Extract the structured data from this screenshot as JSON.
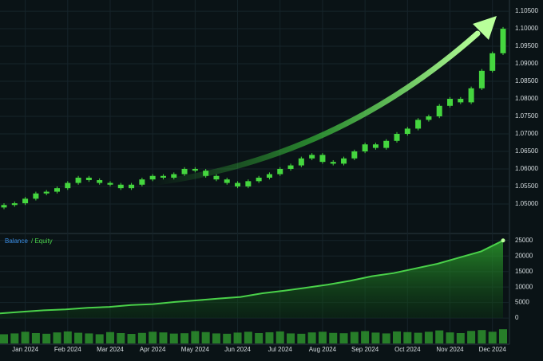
{
  "chart_data": [
    {
      "type": "candlestick",
      "categories": [
        null,
        null,
        "Jan 2024",
        null,
        null,
        null,
        "Feb 2024",
        null,
        null,
        null,
        "Mar 2024",
        null,
        null,
        null,
        "Apr 2024",
        null,
        null,
        null,
        "May 2024",
        null,
        null,
        null,
        "Jun 2024",
        null,
        null,
        null,
        "Jul 2024",
        null,
        null,
        null,
        "Aug 2024",
        null,
        null,
        null,
        "Sep 2024",
        null,
        null,
        null,
        "Oct 2024",
        null,
        null,
        null,
        "Nov 2024",
        null,
        null,
        null,
        "Dec 2024",
        null
      ],
      "open": [
        1.049,
        1.0497,
        1.0502,
        1.0515,
        1.053,
        1.0535,
        1.0545,
        1.056,
        1.0575,
        1.0568,
        1.056,
        1.0555,
        1.0545,
        1.0555,
        1.057,
        1.058,
        1.0575,
        1.0585,
        1.06,
        1.0595,
        1.058,
        1.057,
        1.056,
        1.055,
        1.0565,
        1.0575,
        1.0585,
        1.06,
        1.061,
        1.063,
        1.064,
        1.062,
        1.0615,
        1.063,
        1.065,
        1.067,
        1.066,
        1.068,
        1.07,
        1.0715,
        1.074,
        1.075,
        1.078,
        1.08,
        1.079,
        1.083,
        1.088,
        1.093
      ],
      "high": [
        1.0502,
        1.0507,
        1.052,
        1.0535,
        1.054,
        1.055,
        1.0565,
        1.058,
        1.058,
        1.0573,
        1.0565,
        1.056,
        1.056,
        1.0575,
        1.0585,
        1.0585,
        1.059,
        1.0605,
        1.0605,
        1.06,
        1.0585,
        1.0575,
        1.0565,
        1.057,
        1.058,
        1.059,
        1.0605,
        1.0615,
        1.0635,
        1.0645,
        1.0645,
        1.0625,
        1.0635,
        1.0655,
        1.0675,
        1.0675,
        1.0685,
        1.0705,
        1.072,
        1.0745,
        1.0755,
        1.0785,
        1.0805,
        1.0805,
        1.0835,
        1.0885,
        1.0935,
        1.1005
      ],
      "low": [
        1.0485,
        1.0492,
        1.0497,
        1.051,
        1.0525,
        1.053,
        1.054,
        1.0555,
        1.0563,
        1.0555,
        1.055,
        1.054,
        1.054,
        1.055,
        1.0565,
        1.057,
        1.057,
        1.058,
        1.059,
        1.0575,
        1.0565,
        1.0555,
        1.0545,
        1.0545,
        1.056,
        1.057,
        1.058,
        1.0595,
        1.0605,
        1.0625,
        1.0615,
        1.061,
        1.061,
        1.0625,
        1.0645,
        1.0655,
        1.0655,
        1.0675,
        1.0695,
        1.071,
        1.0735,
        1.0745,
        1.0775,
        1.0785,
        1.0785,
        1.0825,
        1.0875,
        1.0925
      ],
      "close": [
        1.0497,
        1.0502,
        1.0515,
        1.053,
        1.0535,
        1.0545,
        1.056,
        1.0575,
        1.0568,
        1.056,
        1.0555,
        1.0545,
        1.0555,
        1.057,
        1.058,
        1.0575,
        1.0585,
        1.06,
        1.0595,
        1.058,
        1.057,
        1.056,
        1.055,
        1.0565,
        1.0575,
        1.0585,
        1.06,
        1.061,
        1.063,
        1.064,
        1.062,
        1.0615,
        1.063,
        1.065,
        1.067,
        1.066,
        1.068,
        1.07,
        1.0715,
        1.074,
        1.075,
        1.078,
        1.08,
        1.079,
        1.083,
        1.088,
        1.093,
        1.1
      ],
      "color": "#45d63f",
      "ylim": [
        1.0418,
        1.1082
      ],
      "yticks": [
        {
          "value": 1.05,
          "label": "1.05000"
        },
        {
          "value": 1.055,
          "label": "1.05500"
        },
        {
          "value": 1.06,
          "label": "1.06000"
        },
        {
          "value": 1.065,
          "label": "1.06500"
        },
        {
          "value": 1.07,
          "label": "1.07000"
        },
        {
          "value": 1.075,
          "label": "1.07500"
        },
        {
          "value": 1.08,
          "label": "1.08000"
        },
        {
          "value": 1.085,
          "label": "1.08500"
        },
        {
          "value": 1.09,
          "label": "1.09000"
        },
        {
          "value": 1.095,
          "label": "1.09500"
        },
        {
          "value": 1.1,
          "label": "1.10000"
        },
        {
          "value": 1.105,
          "label": "1.10500"
        }
      ],
      "grid": true
    },
    {
      "type": "area",
      "legend": [
        "Balance",
        "/ Equity"
      ],
      "legend_colors": [
        "#3a8ee6",
        "#4ad14a"
      ],
      "values": [
        1500,
        2000,
        2500,
        2800,
        3300,
        3600,
        4200,
        4500,
        5200,
        5700,
        6300,
        6800,
        8000,
        8800,
        9800,
        10800,
        12000,
        13500,
        14500,
        16000,
        17500,
        19500,
        21500,
        25000
      ],
      "color": "#4ad14a",
      "ylim": [
        -2800,
        27000
      ],
      "yticks": [
        0,
        5000,
        10000,
        15000,
        20000,
        25000
      ],
      "grid": true
    },
    {
      "type": "bar",
      "values": [
        55,
        60,
        70,
        62,
        58,
        66,
        72,
        64,
        60,
        55,
        68,
        62,
        57,
        63,
        70,
        66,
        59,
        61,
        74,
        68,
        60,
        58,
        65,
        70,
        62,
        67,
        72,
        60,
        58,
        66,
        70,
        63,
        61,
        69,
        74,
        65,
        60,
        72,
        68,
        64,
        70,
        78,
        66,
        62,
        75,
        80,
        70,
        85
      ],
      "color": "#2e9a2e",
      "ylim": [
        0,
        100
      ]
    }
  ]
}
